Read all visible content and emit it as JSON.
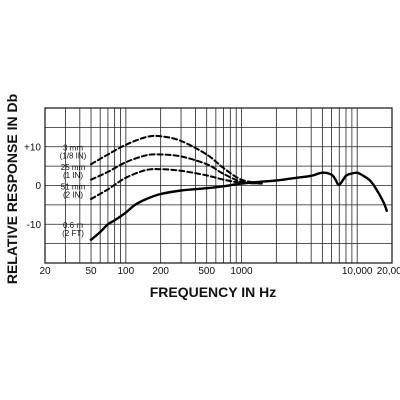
{
  "chart_data": {
    "type": "line",
    "title": "",
    "xlabel": "FREQUENCY IN Hz",
    "ylabel": "RELATIVE RESPONSE IN Db",
    "x_scale": "log",
    "xlim": [
      20,
      20000
    ],
    "ylim": [
      -20,
      20
    ],
    "grid": true,
    "x_ticks": [
      {
        "value": 20,
        "label": "20"
      },
      {
        "value": 50,
        "label": "50"
      },
      {
        "value": 100,
        "label": "100"
      },
      {
        "value": 200,
        "label": "200"
      },
      {
        "value": 500,
        "label": "500"
      },
      {
        "value": 1000,
        "label": "1000"
      },
      {
        "value": 10000,
        "label": "10,000"
      },
      {
        "value": 20000,
        "label": "20,000"
      }
    ],
    "y_ticks": [
      {
        "value": 10,
        "label": "+10"
      },
      {
        "value": 0,
        "label": "0"
      },
      {
        "value": -10,
        "label": "-10"
      }
    ],
    "series": [
      {
        "name": "0.6 m (2 FT)",
        "lines": [
          "0.6 m",
          "(2 FT)"
        ],
        "style": "solid",
        "label_y": -12,
        "x": [
          50,
          60,
          70,
          80,
          100,
          120,
          150,
          200,
          300,
          500,
          700,
          1000,
          1500,
          2000,
          3000,
          4000,
          5000,
          6000,
          6500,
          7000,
          8000,
          9000,
          10000,
          11000,
          13000,
          15000,
          17000,
          18000
        ],
        "values": [
          -14,
          -12,
          -10,
          -9,
          -7,
          -5,
          -3.5,
          -2.2,
          -1.3,
          -0.7,
          -0.2,
          0.5,
          1,
          1.3,
          2,
          2.5,
          3.3,
          2.8,
          1.5,
          0.2,
          2.5,
          3.1,
          3.3,
          2.7,
          1.2,
          -1.5,
          -4.5,
          -6.5
        ]
      },
      {
        "name": "51 mm (2 IN)",
        "lines": [
          "51 mm",
          "(2 IN)"
        ],
        "style": "dashed",
        "label_y": -2,
        "x": [
          50,
          70,
          100,
          150,
          200,
          300,
          500,
          700,
          1000,
          1500
        ],
        "values": [
          -3.5,
          -1,
          2,
          4,
          4.2,
          3.8,
          2.6,
          1.5,
          0.7,
          0.5
        ]
      },
      {
        "name": "25 mm (1 IN)",
        "lines": [
          "25 mm",
          "(1 IN)"
        ],
        "style": "dashed",
        "label_y": 3,
        "x": [
          50,
          70,
          100,
          150,
          200,
          300,
          500,
          700,
          1000,
          1500
        ],
        "values": [
          1.5,
          3.5,
          6,
          7.8,
          8,
          7.5,
          5.5,
          3,
          1,
          0.5
        ]
      },
      {
        "name": "3 mm (1/8 IN)",
        "lines": [
          "3 mm",
          "(1/8 IN)"
        ],
        "style": "dashed",
        "label_y": 8,
        "x": [
          50,
          70,
          100,
          150,
          200,
          300,
          500,
          700,
          1000,
          1500
        ],
        "values": [
          5.5,
          8,
          10.5,
          12.5,
          12.7,
          11.5,
          8,
          4.5,
          1.5,
          0.5
        ]
      }
    ]
  }
}
